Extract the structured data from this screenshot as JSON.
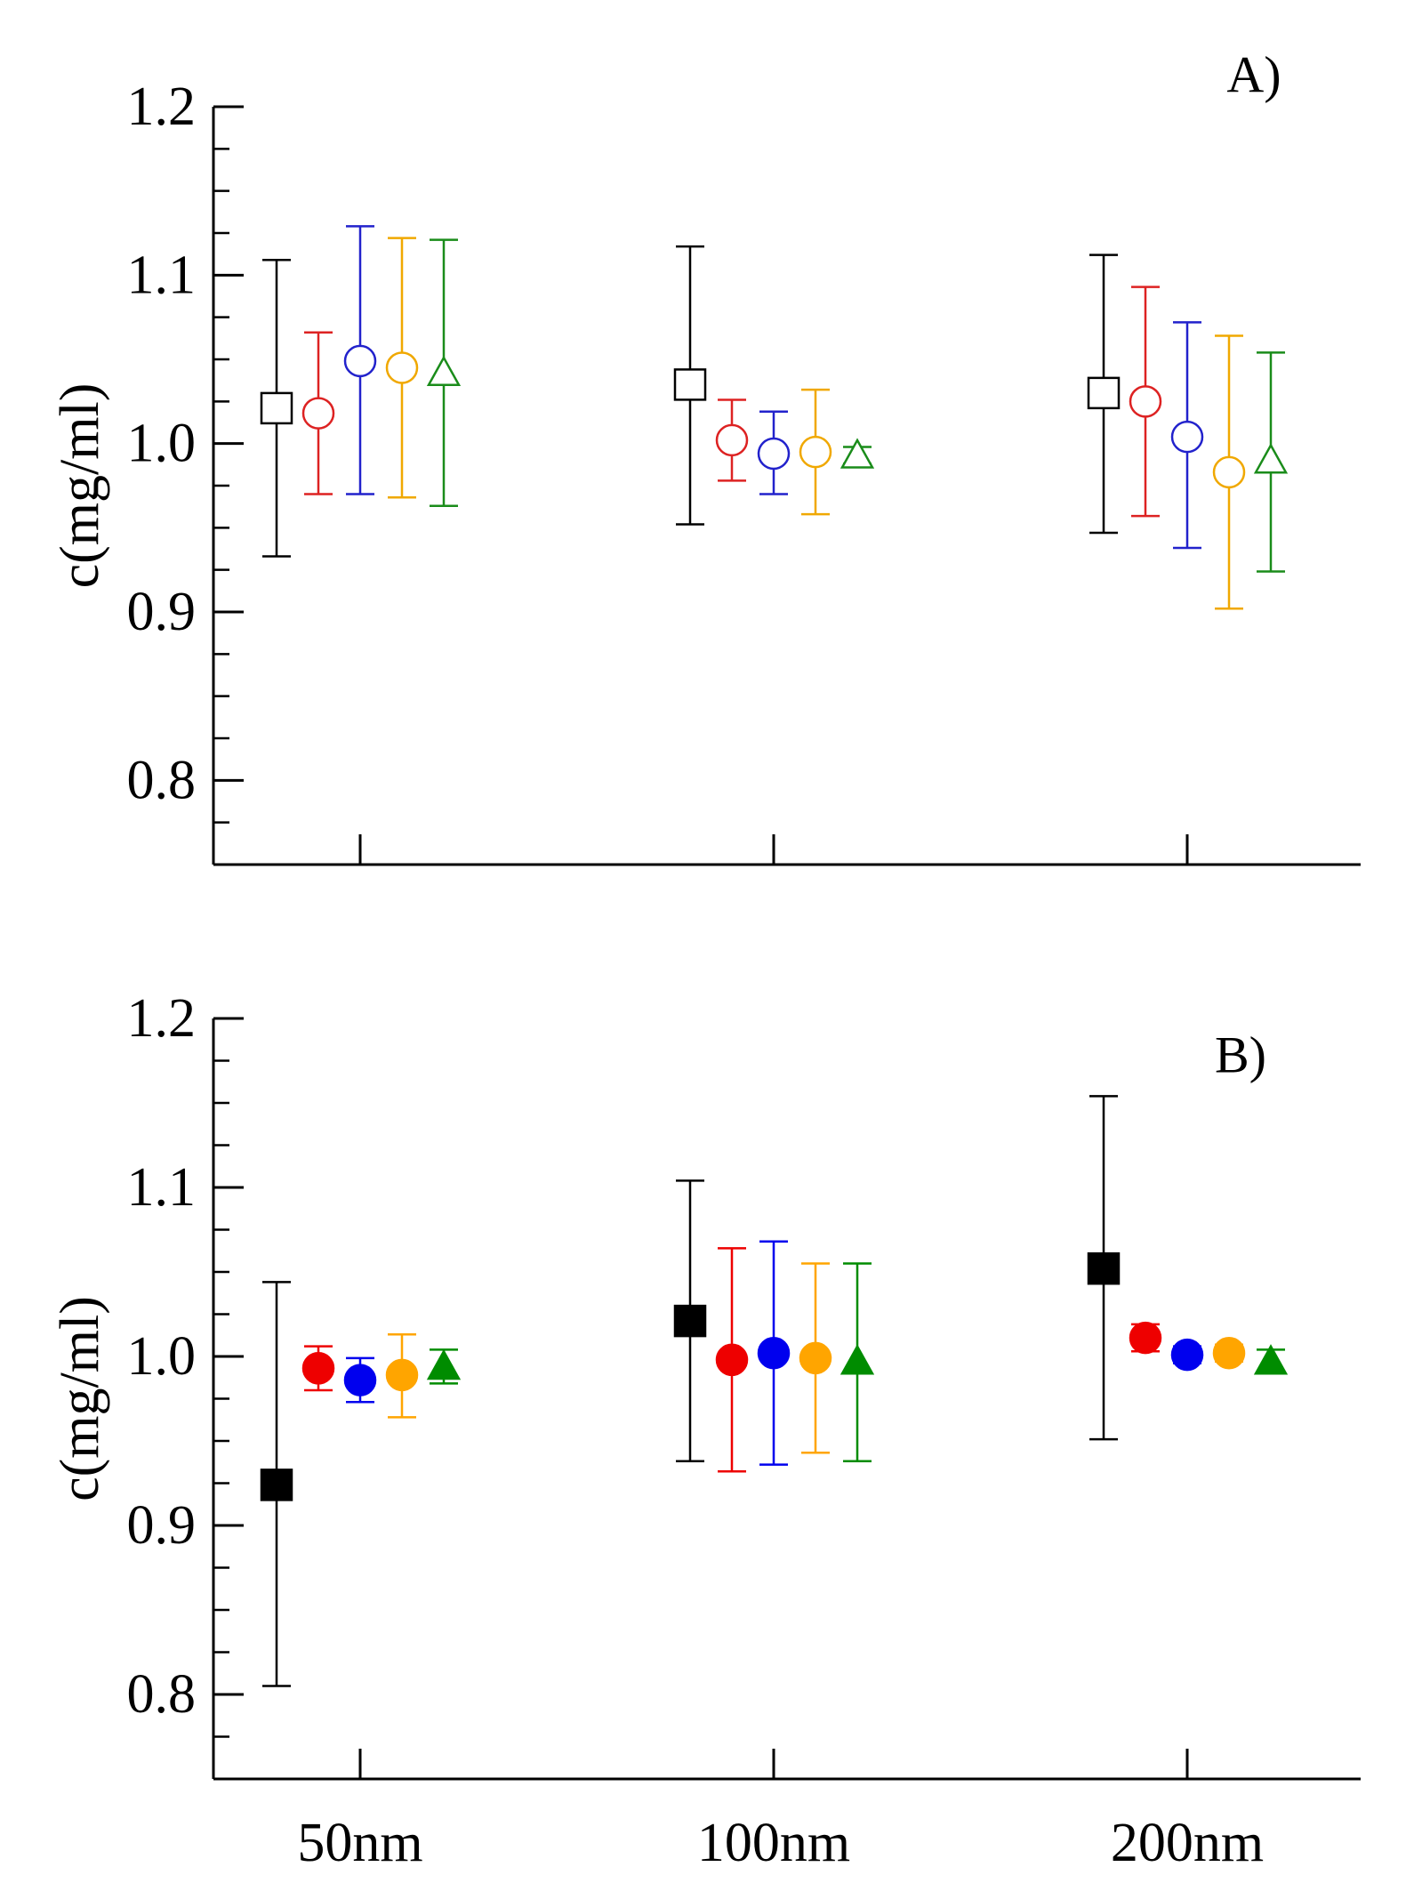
{
  "chart_data": [
    {
      "type": "scatter",
      "panel_label": "A)",
      "ylabel": "c(mg/ml)",
      "xlabel": "",
      "categories": [
        "50nm",
        "100nm",
        "200nm"
      ],
      "category_labels_shown": false,
      "ylim": [
        0.75,
        1.2
      ],
      "yticks": [
        0.8,
        0.9,
        1.0,
        1.1,
        1.2
      ],
      "ytick_labels": [
        "0.8",
        "0.9",
        "1.0",
        "1.1",
        "1.2"
      ],
      "grid": false,
      "legend": "none",
      "series": [
        {
          "color": "#000000",
          "marker": "square",
          "filled": false,
          "offset": -1.0,
          "values": [
            1.021,
            1.035,
            1.03
          ],
          "error_low": [
            0.933,
            0.952,
            0.947
          ],
          "error_high": [
            1.109,
            1.117,
            1.112
          ]
        },
        {
          "color": "#dd2222",
          "marker": "circle",
          "filled": false,
          "offset": -0.5,
          "values": [
            1.018,
            1.002,
            1.025
          ],
          "error_low": [
            0.97,
            0.978,
            0.957
          ],
          "error_high": [
            1.066,
            1.026,
            1.093
          ]
        },
        {
          "color": "#2222cc",
          "marker": "circle",
          "filled": false,
          "offset": 0.0,
          "values": [
            1.049,
            0.994,
            1.004
          ],
          "error_low": [
            0.97,
            0.97,
            0.938
          ],
          "error_high": [
            1.129,
            1.019,
            1.072
          ]
        },
        {
          "color": "#f0a800",
          "marker": "circle",
          "filled": false,
          "offset": 0.5,
          "values": [
            1.045,
            0.995,
            0.983
          ],
          "error_low": [
            0.968,
            0.958,
            0.902
          ],
          "error_high": [
            1.122,
            1.032,
            1.064
          ]
        },
        {
          "color": "#1a8c1a",
          "marker": "triangle",
          "filled": false,
          "offset": 1.0,
          "values": [
            1.042,
            0.993,
            0.99
          ],
          "error_low": [
            0.963,
            0.988,
            0.924
          ],
          "error_high": [
            1.121,
            0.998,
            1.054
          ]
        }
      ]
    },
    {
      "type": "scatter",
      "panel_label": "B)",
      "ylabel": "c(mg/ml)",
      "xlabel": "",
      "categories": [
        "50nm",
        "100nm",
        "200nm"
      ],
      "category_labels_shown": true,
      "ylim": [
        0.75,
        1.2
      ],
      "yticks": [
        0.8,
        0.9,
        1.0,
        1.1,
        1.2
      ],
      "ytick_labels": [
        "0.8",
        "0.9",
        "1.0",
        "1.1",
        "1.2"
      ],
      "grid": false,
      "legend": "none",
      "series": [
        {
          "color": "#000000",
          "marker": "square",
          "filled": true,
          "offset": -1.0,
          "values": [
            0.924,
            1.021,
            1.052
          ],
          "error_low": [
            0.805,
            0.938,
            0.951
          ],
          "error_high": [
            1.044,
            1.104,
            1.154
          ]
        },
        {
          "color": "#ee0000",
          "marker": "circle",
          "filled": true,
          "offset": -0.5,
          "values": [
            0.993,
            0.998,
            1.011
          ],
          "error_low": [
            0.98,
            0.932,
            1.003
          ],
          "error_high": [
            1.006,
            1.064,
            1.019
          ]
        },
        {
          "color": "#0000ee",
          "marker": "circle",
          "filled": true,
          "offset": 0.0,
          "values": [
            0.986,
            1.002,
            1.001
          ],
          "error_low": [
            0.973,
            0.936,
            0.996
          ],
          "error_high": [
            0.999,
            1.068,
            1.006
          ]
        },
        {
          "color": "#ffa500",
          "marker": "circle",
          "filled": true,
          "offset": 0.5,
          "values": [
            0.989,
            0.999,
            1.002
          ],
          "error_low": [
            0.964,
            0.943,
            0.997
          ],
          "error_high": [
            1.013,
            1.055,
            1.007
          ]
        },
        {
          "color": "#008c00",
          "marker": "triangle",
          "filled": true,
          "offset": 1.0,
          "values": [
            0.994,
            0.997,
            0.997
          ],
          "error_low": [
            0.984,
            0.938,
            0.99
          ],
          "error_high": [
            1.004,
            1.055,
            1.004
          ]
        }
      ]
    }
  ]
}
